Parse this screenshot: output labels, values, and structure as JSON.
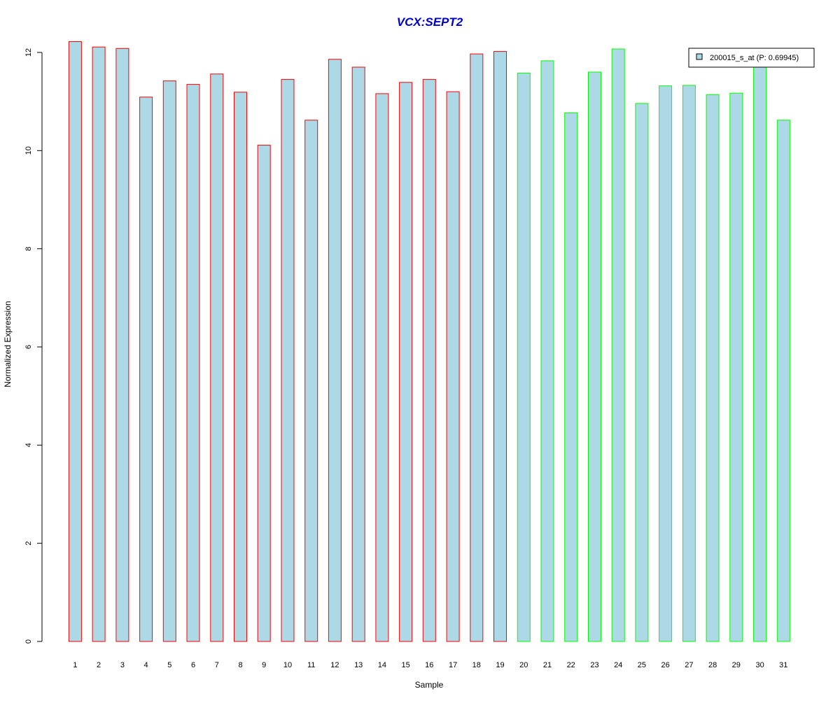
{
  "chart_data": {
    "type": "bar",
    "title": "VCX:SEPT2",
    "xlabel": "Sample",
    "ylabel": "Normalized Expression",
    "ylim": [
      0,
      12
    ],
    "yticks": [
      0,
      2,
      4,
      6,
      8,
      10,
      12
    ],
    "categories": [
      "1",
      "2",
      "3",
      "4",
      "5",
      "6",
      "7",
      "8",
      "9",
      "10",
      "11",
      "12",
      "13",
      "14",
      "15",
      "16",
      "17",
      "18",
      "19",
      "20",
      "21",
      "22",
      "23",
      "24",
      "25",
      "26",
      "27",
      "28",
      "29",
      "30",
      "31"
    ],
    "series": [
      {
        "name": "200015_s_at (P: 0.69945)",
        "values": [
          12.22,
          12.11,
          12.08,
          11.09,
          11.42,
          11.35,
          11.56,
          11.19,
          10.11,
          11.45,
          10.62,
          11.86,
          11.7,
          11.16,
          11.39,
          11.45,
          11.2,
          11.97,
          12.02,
          11.58,
          11.83,
          10.77,
          11.6,
          12.07,
          10.96,
          11.32,
          11.33,
          11.14,
          11.17,
          11.72,
          10.62
        ],
        "fill": "#ADD8E6",
        "outline": [
          "#FF0000",
          "#FF0000",
          "#FF0000",
          "#FF0000",
          "#FF0000",
          "#FF0000",
          "#FF0000",
          "#FF0000",
          "#FF0000",
          "#FF0000",
          "#FF0000",
          "#FF0000",
          "#FF0000",
          "#FF0000",
          "#FF0000",
          "#FF0000",
          "#FF0000",
          "#FF0000",
          "#FF0000",
          "#00FF00",
          "#00FF00",
          "#00FF00",
          "#00FF00",
          "#00FF00",
          "#00FF00",
          "#00FF00",
          "#00FF00",
          "#00FF00",
          "#00FF00",
          "#00FF00",
          "#00FF00"
        ]
      }
    ],
    "colors": {
      "title": "#0000CD",
      "fill": "#ADD8E6",
      "group1_outline": "#FF0000",
      "group2_outline": "#00FF00"
    },
    "legend": {
      "position": "top-right"
    },
    "grid": false
  }
}
